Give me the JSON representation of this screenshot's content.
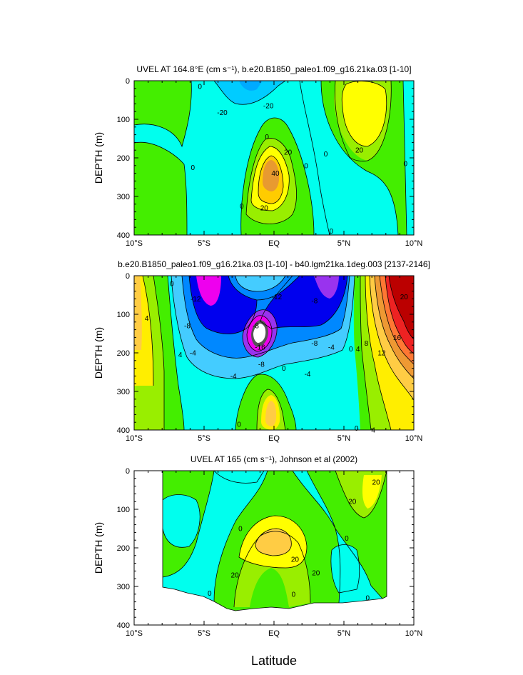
{
  "x_label": "Latitude",
  "chart_data": [
    {
      "type": "contour",
      "title": "UVEL AT 164.8°E (cm s⁻¹), b.e20.B1850_paleo1.f09_g16.21ka.03 [1-10]",
      "ylabel": "DEPTH (m)",
      "xlim": [
        -10,
        10
      ],
      "ylim": [
        0,
        400
      ],
      "x_ticks": [
        "10°S",
        "5°S",
        "EQ",
        "5°N",
        "10°N"
      ],
      "y_ticks": [
        "0",
        "100",
        "200",
        "300",
        "400"
      ],
      "contour_labels": [
        {
          "text": "0",
          "x": -5.8,
          "y": 225
        },
        {
          "text": "-20",
          "x": -3.7,
          "y": 82
        },
        {
          "text": "-20",
          "x": -0.4,
          "y": 65
        },
        {
          "text": "0",
          "x": -0.5,
          "y": 145
        },
        {
          "text": "20",
          "x": 1.0,
          "y": 185
        },
        {
          "text": "40",
          "x": 0.1,
          "y": 240
        },
        {
          "text": "20",
          "x": -0.7,
          "y": 330
        },
        {
          "text": "0",
          "x": -2.3,
          "y": 325
        },
        {
          "text": "0",
          "x": 2.3,
          "y": 220
        },
        {
          "text": "0",
          "x": 3.7,
          "y": 190
        },
        {
          "text": "0",
          "x": 4.1,
          "y": 390
        },
        {
          "text": "20",
          "x": 6.1,
          "y": 180
        },
        {
          "text": "0",
          "x": 9.4,
          "y": 215
        },
        {
          "text": "0",
          "x": -5.3,
          "y": 15
        }
      ]
    },
    {
      "type": "contour",
      "title": "b.e20.B1850_paleo1.f09_g16.21ka.03 [1-10] - b40.lgm21ka.1deg.003 [2137-2146]",
      "ylabel": "DEPTH (m)",
      "xlim": [
        -10,
        10
      ],
      "ylim": [
        0,
        400
      ],
      "x_ticks": [
        "10°S",
        "5°S",
        "EQ",
        "5°N",
        "10°N"
      ],
      "y_ticks": [
        "0",
        "100",
        "200",
        "300",
        "400"
      ],
      "contour_labels": [
        {
          "text": "4",
          "x": -9.1,
          "y": 110
        },
        {
          "text": "0",
          "x": -7.3,
          "y": 20
        },
        {
          "text": "-12",
          "x": -5.6,
          "y": 60
        },
        {
          "text": "-8",
          "x": -6.2,
          "y": 130
        },
        {
          "text": "4",
          "x": -6.7,
          "y": 205
        },
        {
          "text": "-4",
          "x": -5.8,
          "y": 200
        },
        {
          "text": "-4",
          "x": -2.9,
          "y": 260
        },
        {
          "text": "-8",
          "x": -1.3,
          "y": 130
        },
        {
          "text": "-8",
          "x": -0.9,
          "y": 230
        },
        {
          "text": "-12",
          "x": 0.2,
          "y": 55
        },
        {
          "text": "-8",
          "x": 2.9,
          "y": 65
        },
        {
          "text": "-16",
          "x": -1.0,
          "y": 185
        },
        {
          "text": "0",
          "x": 0.7,
          "y": 240
        },
        {
          "text": "-4",
          "x": 2.4,
          "y": 255
        },
        {
          "text": "-8",
          "x": 2.9,
          "y": 175
        },
        {
          "text": "-4",
          "x": 4.1,
          "y": 185
        },
        {
          "text": "0",
          "x": 5.5,
          "y": 190
        },
        {
          "text": "4",
          "x": 6.0,
          "y": 190
        },
        {
          "text": "8",
          "x": 6.6,
          "y": 175
        },
        {
          "text": "12",
          "x": 7.7,
          "y": 200
        },
        {
          "text": "16",
          "x": 8.8,
          "y": 160
        },
        {
          "text": "20",
          "x": 9.3,
          "y": 55
        },
        {
          "text": "0",
          "x": -2.5,
          "y": 385
        },
        {
          "text": "0",
          "x": 5.9,
          "y": 395
        },
        {
          "text": "4",
          "x": 7.1,
          "y": 400
        }
      ]
    },
    {
      "type": "contour",
      "title": "UVEL AT 165 (cm s⁻¹), Johnson et al (2002)",
      "ylabel": "DEPTH (m)",
      "xlim": [
        -10,
        10
      ],
      "ylim": [
        0,
        400
      ],
      "x_ticks": [
        "10°S",
        "5°S",
        "EQ",
        "5°N",
        "10°N"
      ],
      "y_ticks": [
        "0",
        "100",
        "200",
        "300",
        "400"
      ],
      "contour_labels": [
        {
          "text": "0",
          "x": -2.4,
          "y": 150
        },
        {
          "text": "20",
          "x": -2.8,
          "y": 270
        },
        {
          "text": "20",
          "x": 1.5,
          "y": 230
        },
        {
          "text": "20",
          "x": 3.0,
          "y": 265
        },
        {
          "text": "0",
          "x": 1.4,
          "y": 320
        },
        {
          "text": "0",
          "x": 5.2,
          "y": 175
        },
        {
          "text": "20",
          "x": 5.6,
          "y": 80
        },
        {
          "text": "20",
          "x": 7.3,
          "y": 30
        },
        {
          "text": "0",
          "x": 6.7,
          "y": 330
        },
        {
          "text": "0",
          "x": -4.6,
          "y": 318
        }
      ]
    }
  ]
}
